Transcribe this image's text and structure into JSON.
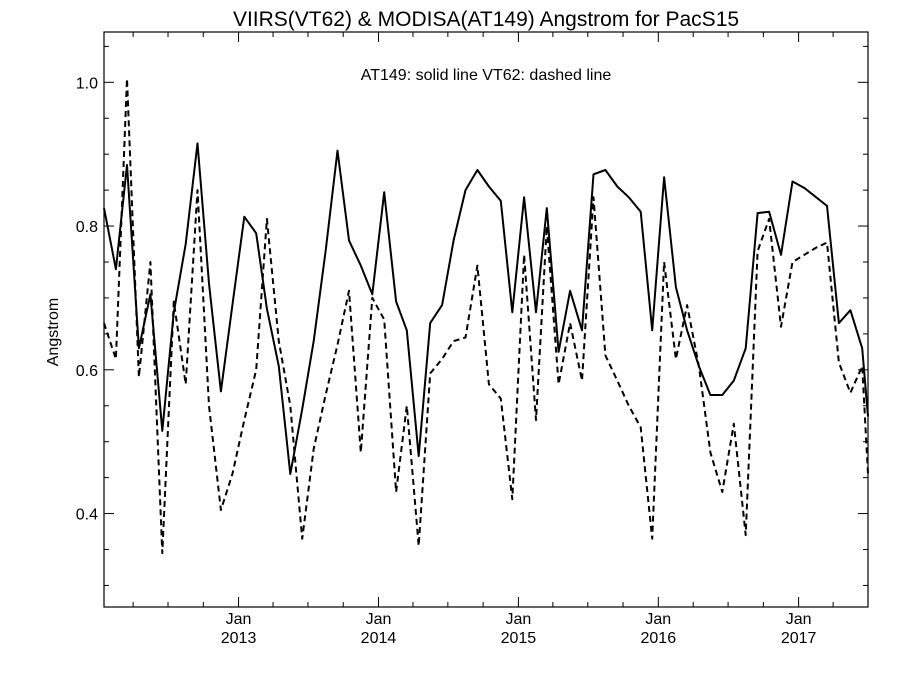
{
  "chart_data": {
    "type": "line",
    "title": "VIIRS(VT62) & MODISA(AT149)  Angstrom for PacS15",
    "annotation": "AT149: solid line   VT62: dashed line",
    "xlabel": "",
    "ylabel": "Angstrom",
    "xlim": [
      "2012-01-16",
      "2017-07-01"
    ],
    "ylim": [
      0.27,
      1.07
    ],
    "yticks": [
      0.4,
      0.6,
      0.8,
      1.0
    ],
    "ytick_labels": [
      "0.4",
      "0.6",
      "0.8",
      "1.0"
    ],
    "xticks": [
      {
        "top": "Jan",
        "bottom": "2013",
        "date": "2013-01-01"
      },
      {
        "top": "Jan",
        "bottom": "2014",
        "date": "2014-01-01"
      },
      {
        "top": "Jan",
        "bottom": "2015",
        "date": "2015-01-01"
      },
      {
        "top": "Jan",
        "bottom": "2016",
        "date": "2016-01-01"
      },
      {
        "top": "Jan",
        "bottom": "2017",
        "date": "2017-01-01"
      }
    ],
    "x": [
      "2012-01-16",
      "2012-02-16",
      "2012-03-16",
      "2012-04-16",
      "2012-05-16",
      "2012-06-16",
      "2012-07-16",
      "2012-08-16",
      "2012-09-16",
      "2012-10-16",
      "2012-11-16",
      "2012-12-16",
      "2013-01-16",
      "2013-02-16",
      "2013-03-16",
      "2013-04-16",
      "2013-05-16",
      "2013-06-16",
      "2013-07-16",
      "2013-08-16",
      "2013-09-16",
      "2013-10-16",
      "2013-11-16",
      "2013-12-16",
      "2014-01-16",
      "2014-02-16",
      "2014-03-16",
      "2014-04-16",
      "2014-05-16",
      "2014-06-16",
      "2014-07-16",
      "2014-08-16",
      "2014-09-16",
      "2014-10-16",
      "2014-11-16",
      "2014-12-16",
      "2015-01-16",
      "2015-02-16",
      "2015-03-16",
      "2015-04-16",
      "2015-05-16",
      "2015-06-16",
      "2015-07-16",
      "2015-08-16",
      "2015-09-16",
      "2015-10-16",
      "2015-11-16",
      "2015-12-16",
      "2016-01-16",
      "2016-02-16",
      "2016-03-16",
      "2016-04-16",
      "2016-05-16",
      "2016-06-16",
      "2016-07-16",
      "2016-08-16",
      "2016-09-16",
      "2016-10-16",
      "2016-11-16",
      "2016-12-16",
      "2017-01-16",
      "2017-02-16",
      "2017-03-16",
      "2017-04-16",
      "2017-05-16",
      "2017-06-16",
      "2017-07-01"
    ],
    "series": [
      {
        "name": "AT149",
        "style": "solid",
        "color": "#000000",
        "values": [
          0.825,
          0.74,
          0.885,
          0.63,
          0.705,
          0.515,
          0.68,
          0.775,
          0.915,
          0.72,
          0.57,
          0.69,
          0.813,
          0.79,
          0.685,
          0.605,
          0.455,
          0.545,
          0.64,
          0.765,
          0.905,
          0.78,
          0.745,
          0.705,
          0.847,
          0.695,
          0.655,
          0.48,
          0.665,
          0.69,
          0.78,
          0.85,
          0.878,
          0.855,
          0.835,
          0.68,
          0.84,
          0.68,
          0.825,
          0.625,
          0.71,
          0.655,
          0.872,
          0.878,
          0.855,
          0.84,
          0.82,
          0.655,
          0.868,
          0.715,
          0.655,
          0.605,
          0.565,
          0.565,
          0.585,
          0.63,
          0.818,
          0.82,
          0.76,
          0.862,
          0.853,
          0.84,
          0.828,
          0.665,
          0.683,
          0.63,
          0.535
        ]
      },
      {
        "name": "VT62",
        "style": "dashed",
        "color": "#000000",
        "values": [
          0.665,
          0.615,
          1.005,
          0.59,
          0.75,
          0.345,
          0.695,
          0.58,
          0.85,
          0.55,
          0.405,
          0.455,
          0.53,
          0.6,
          0.81,
          0.64,
          0.55,
          0.365,
          0.49,
          0.565,
          0.635,
          0.71,
          0.485,
          0.7,
          0.67,
          0.43,
          0.55,
          0.355,
          0.595,
          0.615,
          0.64,
          0.645,
          0.745,
          0.58,
          0.56,
          0.42,
          0.76,
          0.53,
          0.8,
          0.58,
          0.665,
          0.585,
          0.84,
          0.62,
          0.585,
          0.55,
          0.52,
          0.365,
          0.75,
          0.615,
          0.69,
          0.605,
          0.485,
          0.43,
          0.525,
          0.37,
          0.765,
          0.81,
          0.66,
          0.75,
          0.76,
          0.77,
          0.777,
          0.61,
          0.568,
          0.605,
          0.455
        ]
      }
    ],
    "grid": false,
    "legend": "none"
  }
}
